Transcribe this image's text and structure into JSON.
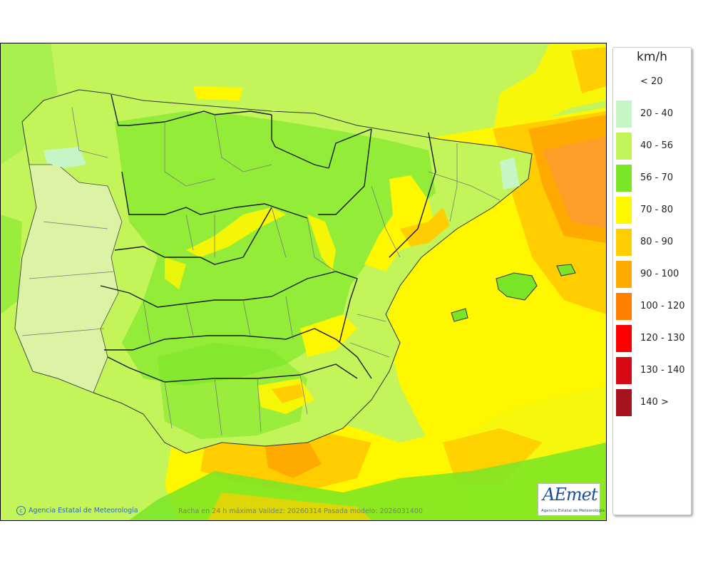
{
  "map": {
    "credit": "Agencia Estatal de Meteorología",
    "caption": "Racha en 24 h máxima  Validez: 20260314 Pasada modelo: 2026031400",
    "logo": {
      "word": "AEmet",
      "tagline": "Agencia Estatal de Meteorología"
    }
  },
  "legend": {
    "title": "km/h",
    "items": [
      {
        "label": "< 20",
        "color": "#ffffff"
      },
      {
        "label": "20 - 40",
        "color": "#c6f6c6"
      },
      {
        "label": "40 - 56",
        "color": "#c3f55a"
      },
      {
        "label": "56 - 70",
        "color": "#78e627"
      },
      {
        "label": "70 - 80",
        "color": "#fff700"
      },
      {
        "label": "80 - 90",
        "color": "#ffcd00"
      },
      {
        "label": "90 - 100",
        "color": "#ffaa00"
      },
      {
        "label": "100 - 120",
        "color": "#ff7f00"
      },
      {
        "label": "120 - 130",
        "color": "#ff0000"
      },
      {
        "label": "130 - 140",
        "color": "#d50a14"
      },
      {
        "label": "140 >",
        "color": "#a5141e"
      }
    ]
  }
}
